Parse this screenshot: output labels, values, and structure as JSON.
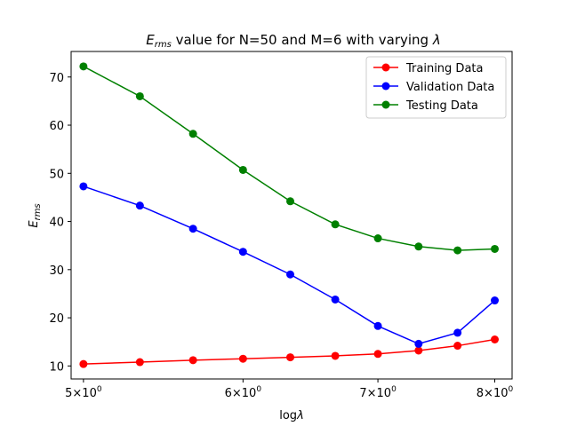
{
  "chart_data": {
    "type": "line",
    "title": {
      "prefix_main": "E",
      "prefix_sub": "rms",
      "middle": " value for N=50 and M=6 with varying ",
      "suffix": "λ"
    },
    "xlabel": {
      "prefix": "log",
      "symbol": "λ"
    },
    "ylabel": {
      "main": "E",
      "sub": "rms"
    },
    "x_scale": "log",
    "xlim": [
      4.93,
      8.16
    ],
    "ylim": [
      7.3,
      75.3
    ],
    "x_ticks": [
      {
        "value": 5,
        "base": "5×10",
        "exp": "0"
      },
      {
        "value": 6,
        "base": "6×10",
        "exp": "0"
      },
      {
        "value": 7,
        "base": "7×10",
        "exp": "0"
      },
      {
        "value": 8,
        "base": "8×10",
        "exp": "0"
      }
    ],
    "y_ticks": [
      10,
      20,
      30,
      40,
      50,
      60,
      70
    ],
    "x": [
      5.0,
      5.333,
      5.667,
      6.0,
      6.333,
      6.667,
      7.0,
      7.333,
      7.667,
      8.0
    ],
    "series": [
      {
        "name": "Training Data",
        "color": "#ff0000",
        "values": [
          10.4,
          10.8,
          11.2,
          11.5,
          11.8,
          12.1,
          12.5,
          13.2,
          14.2,
          15.5
        ]
      },
      {
        "name": "Validation Data",
        "color": "#0000ff",
        "values": [
          47.3,
          43.3,
          38.5,
          33.7,
          29.0,
          23.8,
          18.3,
          14.6,
          16.9,
          23.6
        ]
      },
      {
        "name": "Testing Data",
        "color": "#008000",
        "values": [
          72.2,
          66.0,
          58.2,
          50.7,
          44.2,
          39.4,
          36.5,
          34.8,
          34.0,
          34.3
        ]
      }
    ],
    "grid": false,
    "legend_position": "top-right"
  }
}
